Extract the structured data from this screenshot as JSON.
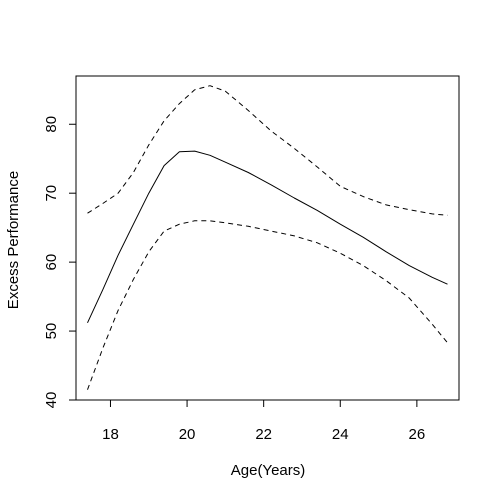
{
  "chart_data": {
    "type": "line",
    "title": "",
    "xlabel": "Age(Years)",
    "ylabel": "Excess Performance",
    "xlim": [
      17.1,
      27.1
    ],
    "ylim": [
      40,
      87
    ],
    "grid": false,
    "legend": "none",
    "x_ticks": [
      18,
      20,
      22,
      24,
      26
    ],
    "y_ticks": [
      40,
      50,
      60,
      70,
      80
    ],
    "series": [
      {
        "line_style": "solid",
        "x": [
          17.4,
          17.8,
          18.2,
          18.6,
          19.0,
          19.4,
          19.8,
          20.2,
          20.6,
          21.0,
          21.6,
          22.2,
          22.8,
          23.4,
          24.0,
          24.6,
          25.2,
          25.8,
          26.4,
          26.8
        ],
        "y": [
          51.2,
          56.0,
          61.0,
          65.5,
          70.0,
          74.0,
          76.0,
          76.1,
          75.5,
          74.5,
          73.0,
          71.2,
          69.3,
          67.5,
          65.5,
          63.6,
          61.5,
          59.5,
          57.8,
          56.8
        ]
      },
      {
        "line_style": "dashed",
        "x": [
          17.4,
          17.8,
          18.2,
          18.6,
          19.0,
          19.4,
          19.8,
          20.2,
          20.6,
          21.0,
          21.6,
          22.2,
          22.8,
          23.4,
          24.0,
          24.6,
          25.2,
          25.8,
          26.4,
          26.8
        ],
        "y": [
          67.1,
          68.5,
          70.0,
          73.0,
          77.0,
          80.5,
          83.0,
          85.0,
          85.6,
          84.8,
          82.0,
          79.0,
          76.5,
          73.8,
          71.0,
          69.5,
          68.3,
          67.6,
          67.0,
          66.8
        ]
      },
      {
        "line_style": "dashed",
        "x": [
          17.4,
          17.8,
          18.2,
          18.6,
          19.0,
          19.4,
          19.8,
          20.2,
          20.6,
          21.0,
          21.6,
          22.2,
          22.8,
          23.4,
          24.0,
          24.6,
          25.2,
          25.8,
          26.4,
          26.8
        ],
        "y": [
          41.5,
          47.5,
          53.0,
          57.5,
          61.5,
          64.5,
          65.5,
          66.0,
          66.0,
          65.7,
          65.2,
          64.5,
          63.8,
          62.8,
          61.3,
          59.5,
          57.3,
          54.8,
          51.0,
          48.3
        ]
      }
    ]
  }
}
